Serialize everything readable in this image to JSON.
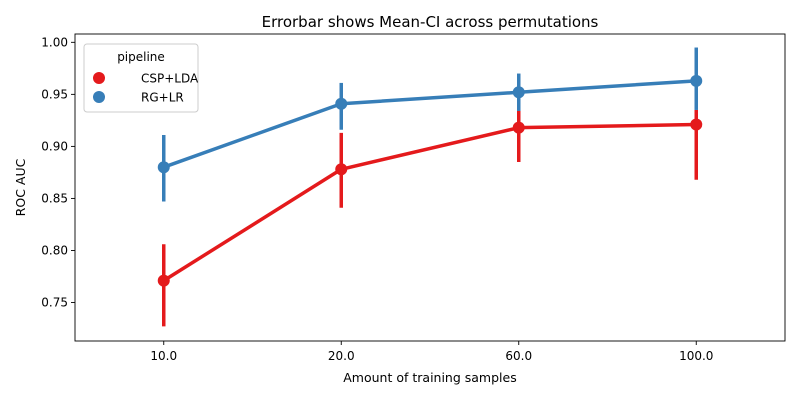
{
  "chart_data": {
    "type": "line",
    "title": "Errorbar shows Mean-CI across permutations",
    "xlabel": "Amount of training samples",
    "ylabel": "ROC AUC",
    "categories": [
      "10.0",
      "20.0",
      "60.0",
      "100.0"
    ],
    "ylim": [
      0.713,
      1.008
    ],
    "yticks": [
      0.75,
      0.8,
      0.85,
      0.9,
      0.95,
      1.0
    ],
    "ytick_labels": [
      "0.75",
      "0.80",
      "0.85",
      "0.90",
      "0.95",
      "1.00"
    ],
    "grid": false,
    "legend": {
      "title": "pipeline",
      "placement": "top-left"
    },
    "series": [
      {
        "name": "CSP+LDA",
        "color": "#e41a1c",
        "values": [
          0.771,
          0.878,
          0.918,
          0.921
        ],
        "ci_low": [
          0.727,
          0.841,
          0.885,
          0.868
        ],
        "ci_high": [
          0.806,
          0.913,
          0.935,
          0.935
        ]
      },
      {
        "name": "RG+LR",
        "color": "#377eb8",
        "values": [
          0.88,
          0.941,
          0.952,
          0.963
        ],
        "ci_low": [
          0.847,
          0.916,
          0.934,
          0.935
        ],
        "ci_high": [
          0.911,
          0.961,
          0.97,
          0.995
        ]
      }
    ]
  }
}
